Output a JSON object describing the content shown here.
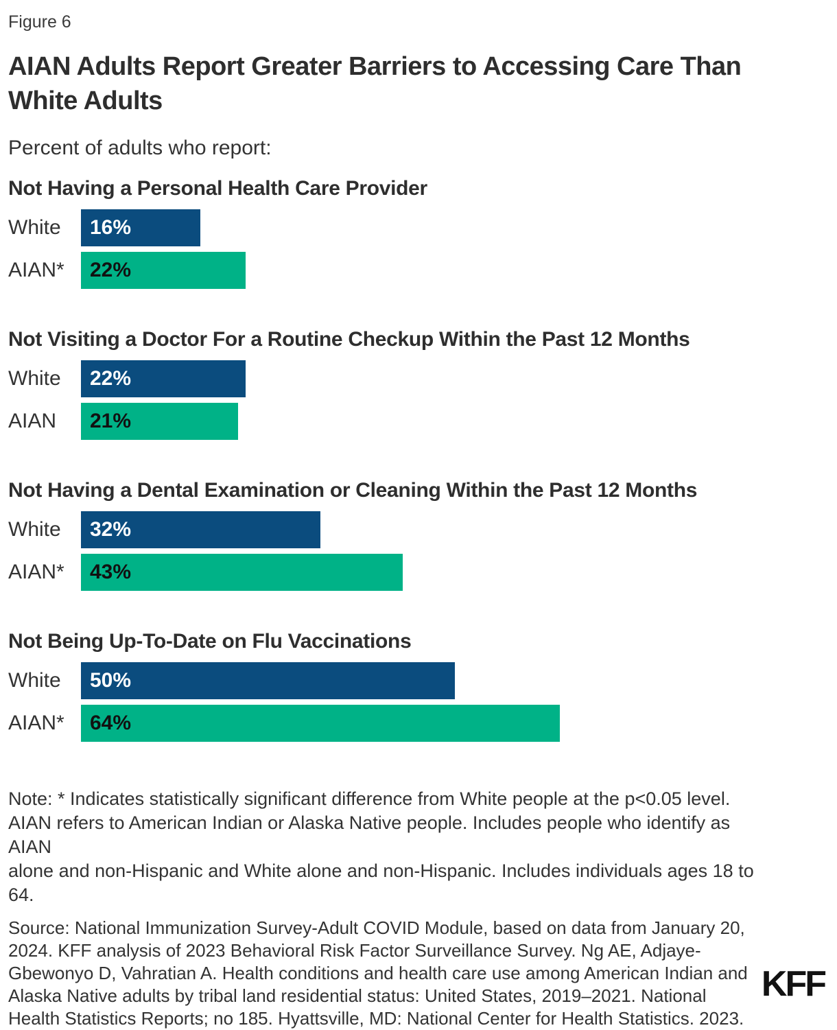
{
  "figure_label": "Figure 6",
  "title": "AIAN Adults Report Greater Barriers to Accessing Care Than\nWhite Adults",
  "subtitle": "Percent of adults who report:",
  "colors": {
    "white_bar_blue": "#0B4C7E",
    "aian_bar_green": "#00B287",
    "text": "#333333"
  },
  "chart_data": {
    "type": "bar",
    "orientation": "horizontal",
    "unit": "%",
    "value_axis_range": [
      0,
      100
    ],
    "grid": false,
    "legend": "none",
    "groups": [
      {
        "heading": "Not Having a Personal Health Care Provider",
        "bars": [
          {
            "label": "White",
            "value": 16,
            "display": "16%"
          },
          {
            "label": "AIAN*",
            "value": 22,
            "display": "22%"
          }
        ]
      },
      {
        "heading": "Not Visiting a Doctor For a Routine Checkup Within the Past 12 Months",
        "bars": [
          {
            "label": "White",
            "value": 22,
            "display": "22%"
          },
          {
            "label": "AIAN",
            "value": 21,
            "display": "21%"
          }
        ]
      },
      {
        "heading": "Not Having a Dental Examination or Cleaning Within the Past 12 Months",
        "bars": [
          {
            "label": "White",
            "value": 32,
            "display": "32%"
          },
          {
            "label": "AIAN*",
            "value": 43,
            "display": "43%"
          }
        ]
      },
      {
        "heading": "Not Being Up-To-Date on Flu Vaccinations",
        "bars": [
          {
            "label": "White",
            "value": 50,
            "display": "50%"
          },
          {
            "label": "AIAN*",
            "value": 64,
            "display": "64%"
          }
        ]
      }
    ]
  },
  "note": "Note: * Indicates statistically significant difference from White people at the p<0.05 level.\nAIAN refers to American Indian or Alaska Native people. Includes people who identify as AIAN\nalone and non-Hispanic and White alone and non-Hispanic. Includes individuals ages 18 to\n64.",
  "source": "Source: National Immunization Survey-Adult COVID Module, based on data from January 20,\n2024. KFF analysis of 2023 Behavioral Risk Factor Surveillance Survey. Ng AE, Adjaye-\nGbewonyo D, Vahratian A. Health conditions and health care use among American Indian and\nAlaska Native adults by tribal land residential status: United States, 2019–2021. National\nHealth Statistics Reports; no 185. Hyattsville, MD: National Center for Health Statistics. 2023.",
  "logo": "KFF"
}
